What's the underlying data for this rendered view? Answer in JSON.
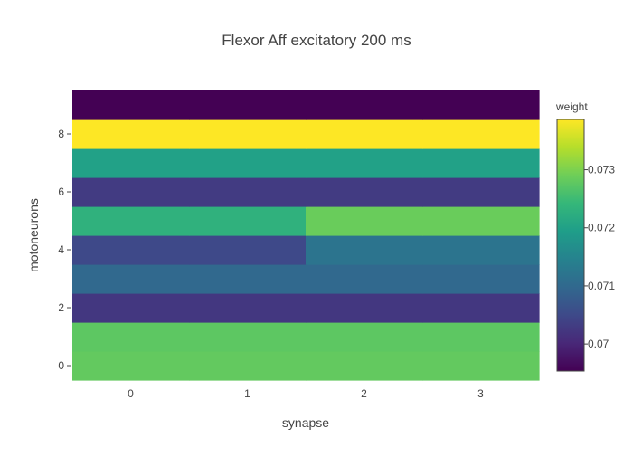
{
  "chart_data": {
    "type": "heatmap",
    "title": "Flexor Aff excitatory 200 ms",
    "xlabel": "synapse",
    "ylabel": "motoneurons",
    "x": [
      0,
      1,
      2,
      3
    ],
    "y": [
      0,
      1,
      2,
      3,
      4,
      5,
      6,
      7,
      8,
      9
    ],
    "x_tick_labels": [
      "0",
      "1",
      "2",
      "3"
    ],
    "y_tick_values": [
      0,
      2,
      4,
      6,
      8
    ],
    "y_tick_labels": [
      "0",
      "2",
      "4",
      "6",
      "8"
    ],
    "z": [
      [
        0.0728,
        0.0728,
        0.0728,
        0.0728
      ],
      [
        0.07275,
        0.07275,
        0.07275,
        0.07275
      ],
      [
        0.07025,
        0.07025,
        0.07025,
        0.07025
      ],
      [
        0.071,
        0.071,
        0.071,
        0.071
      ],
      [
        0.0705,
        0.0705,
        0.0712,
        0.0712
      ],
      [
        0.0723,
        0.0723,
        0.07285,
        0.07285
      ],
      [
        0.0703,
        0.0703,
        0.0703,
        0.0703
      ],
      [
        0.072,
        0.072,
        0.072,
        0.072
      ],
      [
        0.07385,
        0.07385,
        0.07385,
        0.07385
      ],
      [
        0.06955,
        0.06955,
        0.06955,
        0.06955
      ]
    ],
    "zmin": 0.06955,
    "zmax": 0.07385,
    "colorscale": "Viridis",
    "colorbar": {
      "title": "weight",
      "tick_values": [
        0.07,
        0.071,
        0.072,
        0.073
      ],
      "tick_labels": [
        "0.07",
        "0.071",
        "0.072",
        "0.073"
      ]
    },
    "grid": false,
    "legend": "none"
  }
}
